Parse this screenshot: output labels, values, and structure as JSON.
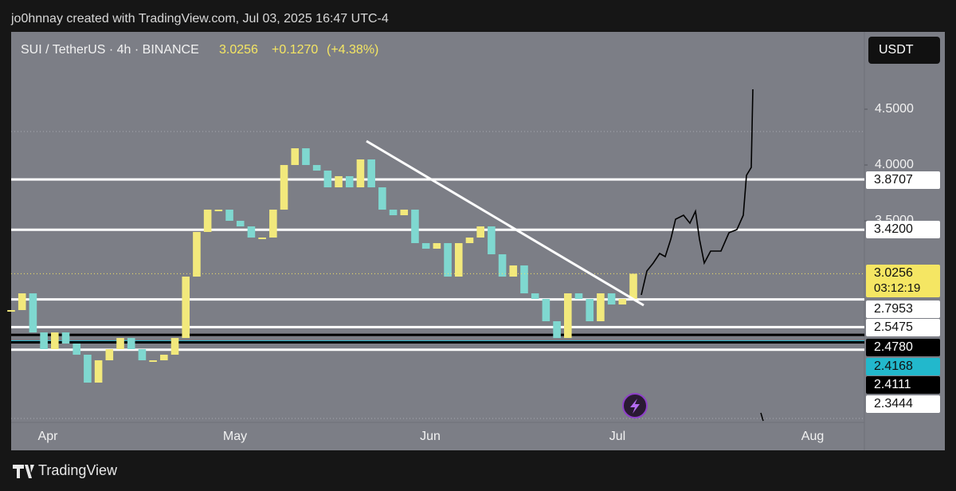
{
  "header": {
    "attribution": "jo0hnnay created with TradingView.com, Jul 03, 2025 16:47 UTC-4",
    "symbol": "SUI / TetherUS · 4h · BINANCE",
    "last": "3.0256",
    "change": "+0.1270",
    "change_pct": "(+4.38%)",
    "currency": "USDT"
  },
  "footer": {
    "brand": "TradingView"
  },
  "chart_data": {
    "type": "candlestick",
    "values": [
      2.7,
      2.85,
      2.5,
      2.35,
      2.5,
      2.4,
      2.3,
      2.05,
      2.25,
      2.35,
      2.45,
      2.35,
      2.25,
      2.25,
      2.3,
      2.45,
      3.0,
      3.4,
      3.6,
      3.6,
      3.5,
      3.45,
      3.35,
      3.35,
      3.6,
      4.0,
      4.15,
      4.0,
      3.95,
      3.8,
      3.9,
      3.8,
      4.05,
      3.8,
      3.6,
      3.55,
      3.6,
      3.3,
      3.25,
      3.3,
      3.0,
      3.3,
      3.35,
      3.45,
      3.2,
      3.0,
      3.1,
      2.85,
      2.8,
      2.6,
      2.45,
      2.85,
      2.8,
      2.6,
      2.85,
      2.75,
      2.8,
      3.0256
    ],
    "up_color": "#f2e97c",
    "down_color": "#7fd8d0",
    "ylim": [
      1.693,
      5.193
    ],
    "yticks": [
      {
        "value": 4.5,
        "label": "4.5000"
      },
      {
        "value": 4.0,
        "label": "4.0000"
      },
      {
        "value": 3.5,
        "label": "3.5000"
      }
    ],
    "x_labels": [
      "Apr",
      "May",
      "Jun",
      "Jul",
      "Aug"
    ],
    "last_price": {
      "value": 3.0256,
      "label": "3.0256",
      "countdown": "03:12:19",
      "color": "#f5e663"
    },
    "levels": [
      {
        "value": 3.8707,
        "label": "3.8707",
        "color": "#ffffff"
      },
      {
        "value": 3.42,
        "label": "3.4200",
        "color": "#ffffff"
      },
      {
        "value": 2.7953,
        "label": "2.7953",
        "color": "#ffffff"
      },
      {
        "value": 2.5475,
        "label": "2.5475",
        "color": "#ffffff"
      },
      {
        "value": 2.478,
        "label": "2.4780",
        "color": "#000000"
      },
      {
        "value": 2.4168,
        "label": "2.4168",
        "color": "#22b8cc"
      },
      {
        "value": 2.4111,
        "label": "2.4111",
        "color": "#000000"
      },
      {
        "value": 2.3444,
        "label": "2.3444",
        "color": "#ffffff"
      }
    ]
  }
}
